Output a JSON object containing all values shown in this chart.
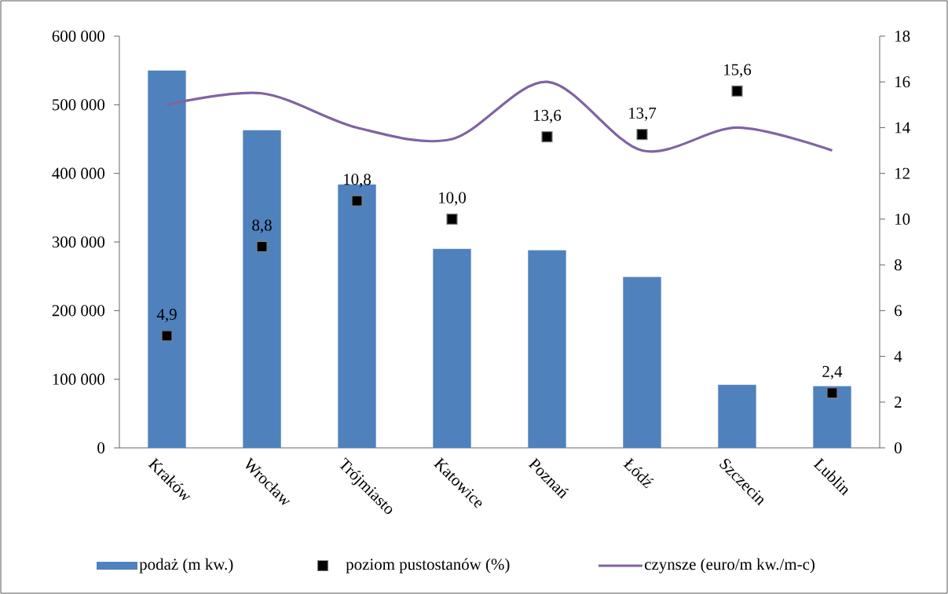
{
  "chart_data": {
    "type": "bar",
    "categories": [
      "Kraków",
      "Wrocław",
      "Trójmiasto",
      "Katowice",
      "Poznań",
      "Łódź",
      "Szczecin",
      "Lublin"
    ],
    "series": [
      {
        "name": "podaż (m kw.)",
        "color": "#4f81bd",
        "values": [
          550000,
          463000,
          384000,
          290000,
          288000,
          249000,
          92000,
          90000
        ]
      },
      {
        "name": "poziom pustostanów (%)",
        "type": "scatter",
        "axis": "y2",
        "marker": "square",
        "color": "#000000",
        "values": [
          4.9,
          8.8,
          10.8,
          10.0,
          13.6,
          13.7,
          15.6,
          2.4
        ],
        "value_labels": [
          "4,9",
          "8,8",
          "10,8",
          "10,0",
          "13,6",
          "13,7",
          "15,6",
          "2,4"
        ]
      },
      {
        "name": "czynsze (euro/m kw./m-c)",
        "type": "line",
        "axis": "y2",
        "marker": "none",
        "color": "#8064a2",
        "values": [
          15,
          15.5,
          14,
          13.5,
          16,
          13,
          14,
          13
        ]
      }
    ],
    "ylim": [
      0,
      600000
    ],
    "yticks": [
      {
        "value": 0,
        "label": "0"
      },
      {
        "value": 100000,
        "label": "100 000"
      },
      {
        "value": 200000,
        "label": "200 000"
      },
      {
        "value": 300000,
        "label": "300 000"
      },
      {
        "value": 400000,
        "label": "400 000"
      },
      {
        "value": 500000,
        "label": "500 000"
      },
      {
        "value": 600000,
        "label": "600 000"
      }
    ],
    "y2lim": [
      0,
      18
    ],
    "y2ticks": [
      0,
      2,
      4,
      6,
      8,
      10,
      12,
      14,
      16,
      18
    ],
    "legend": "bottom"
  }
}
